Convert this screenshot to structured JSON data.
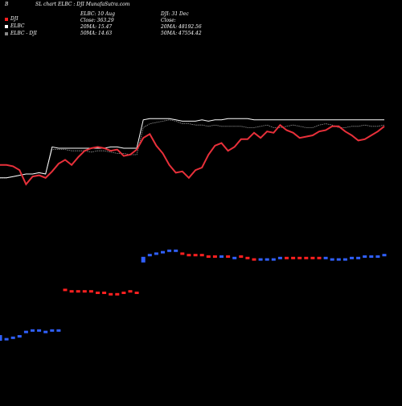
{
  "header": {
    "letter": "B",
    "title": "SL chart ELBC : DJI MunafaSutra.com"
  },
  "legend": {
    "items": [
      {
        "label": "DJI",
        "color": "#ff2020"
      },
      {
        "label": "ELBC",
        "color": "#ffffff"
      },
      {
        "label": "ELBC - DJI",
        "color": "#888888"
      }
    ]
  },
  "stats_elbc": {
    "line1": "ELBC: 10  Aug",
    "line2": "Close: 363.29",
    "line3": "20MA: 15.47",
    "line4": "50MA: 14.63"
  },
  "stats_dji": {
    "line1": "DJI: 31 Dec",
    "line2": "Close:",
    "line3": "20MA: 48192.56",
    "line4": "50MA: 47554.42"
  },
  "colors": {
    "background": "#000000",
    "dji_line": "#e8303a",
    "elbc_line": "#ffffff",
    "ma_line": "#9a9a9a",
    "bar_up": "#3060ff",
    "bar_down": "#ff2020"
  },
  "chart_data": {
    "type": "line",
    "x": [
      1,
      2,
      3,
      4,
      5,
      6,
      7,
      8,
      9,
      10,
      11,
      12,
      13,
      14,
      15,
      16,
      17,
      18,
      19,
      20,
      21,
      22,
      23,
      24,
      25,
      26,
      27,
      28,
      29,
      30,
      31,
      32,
      33,
      34,
      35,
      36,
      37,
      38,
      39,
      40,
      41,
      42,
      43,
      44,
      45,
      46,
      47,
      48,
      49,
      50,
      51,
      52,
      53,
      54,
      55,
      56,
      57,
      58,
      59,
      60
    ],
    "ylim": [
      0,
      100
    ],
    "series": [
      {
        "name": "DJI",
        "values": [
          47,
          47,
          46,
          43,
          32,
          38,
          39,
          37,
          42,
          48,
          51,
          47,
          53,
          58,
          60,
          61,
          60,
          58,
          59,
          54,
          55,
          59,
          68,
          71,
          62,
          56,
          47,
          41,
          42,
          37,
          43,
          45,
          55,
          62,
          64,
          58,
          61,
          67,
          67,
          72,
          68,
          73,
          72,
          78,
          74,
          72,
          68,
          69,
          70,
          73,
          74,
          77,
          77,
          73,
          70,
          66,
          67,
          70,
          73,
          77
        ]
      },
      {
        "name": "ELBC",
        "values": [
          37,
          37,
          38,
          39,
          40,
          40,
          41,
          40,
          61,
          60,
          60,
          60,
          60,
          60,
          60,
          60,
          60,
          61,
          61,
          60,
          60,
          60,
          82,
          83,
          83,
          83,
          83,
          82,
          81,
          81,
          81,
          82,
          81,
          82,
          82,
          83,
          83,
          83,
          83,
          82,
          82,
          82,
          82,
          82,
          82,
          82,
          82,
          82,
          82,
          82,
          82,
          82,
          82,
          82,
          82,
          82,
          82,
          82,
          82,
          82
        ]
      },
      {
        "name": "ELBC - DJI",
        "values": [
          37,
          37,
          38,
          39,
          40,
          40,
          41,
          40,
          59,
          59,
          59,
          58,
          58,
          58,
          57,
          58,
          58,
          57,
          56,
          56,
          55,
          55,
          76,
          79,
          80,
          81,
          82,
          81,
          79,
          79,
          78,
          78,
          77,
          78,
          77,
          77,
          77,
          77,
          76,
          76,
          77,
          78,
          76,
          76,
          77,
          78,
          77,
          76,
          76,
          78,
          79,
          78,
          76,
          76,
          77,
          77,
          78,
          77,
          77,
          78
        ]
      }
    ],
    "volume": {
      "direction": [
        "up",
        "up",
        "up",
        "up",
        "up",
        "up",
        "up",
        "up",
        "up",
        "up",
        "down",
        "down",
        "down",
        "down",
        "down",
        "down",
        "down",
        "down",
        "down",
        "down",
        "down",
        "down",
        "up",
        "up",
        "up",
        "up",
        "up",
        "up",
        "down",
        "down",
        "down",
        "down",
        "down",
        "down",
        "up",
        "down",
        "up",
        "down",
        "down",
        "down",
        "up",
        "up",
        "up",
        "up",
        "down",
        "down",
        "down",
        "down",
        "down",
        "down",
        "up",
        "up",
        "up",
        "up",
        "up",
        "up",
        "up",
        "up",
        "up",
        "up"
      ],
      "values": [
        30,
        28,
        29,
        30,
        33,
        34,
        34,
        33,
        34,
        34,
        62,
        61,
        61,
        61,
        61,
        60,
        60,
        59,
        59,
        60,
        61,
        60,
        84,
        86,
        87,
        88,
        89,
        89,
        87,
        86,
        86,
        86,
        85,
        85,
        85,
        85,
        84,
        85,
        84,
        83,
        83,
        83,
        83,
        84,
        84,
        84,
        84,
        84,
        84,
        84,
        84,
        83,
        83,
        83,
        84,
        84,
        85,
        85,
        85,
        86
      ]
    }
  }
}
